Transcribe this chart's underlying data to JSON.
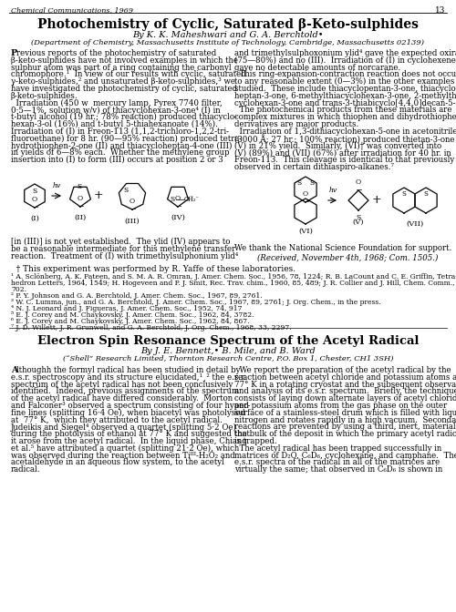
{
  "bg_color": "#ffffff",
  "header": "Chemical Communications, 1969",
  "page_num": "13",
  "art1_title": "Photochemistry of Cyclic, Saturated β-Keto-sulphides",
  "art1_by": "By K. K. Maheshwari and G. A. Berchtold•",
  "art1_aff": "(Department of Chemistry, Massachusetts Institute of Technology, Cambridge, Massachusetts 02139)",
  "art1_left": [
    "Previous reports of the photochemistry of saturated",
    "β-keto-sulphides have not involved examples in which the",
    "sulphur atom was part of a ring containing the carbonyl",
    "chromophore.¹  In view of our results with cyclic, saturated",
    "γ-keto-sulphides,² and unsaturated β-keto-sulphides,³ we",
    "have investigated the photochemistry of cyclic, saturated",
    "β-keto-sulphides.",
    "  Irradiation (450 w  mercury lamp, Pyrex 7740 filter,",
    "0·5—1%, solution w/v) of thiacyclohexan-3-one⁴ (I) in",
    "t-butyl alcohol (19 hr.; 78% reaction) produced thiacyclo-",
    "hexan-3-ol (16%) and t-butyl 5-thiahexanoate (14%).",
    "Irradiation of (I) in Freon-113 (1,1,2-trichloro-1,2,2-tri-",
    "fluoroethane) for 8 hr. (90—95% reaction) produced tetra-",
    "hydrothiophen-2-one (II) and thiacycloheptan-4-one (III)",
    "in yields of 6—8% each.  Whether the methylene group",
    "insertion into (I) to form (III) occurs at position 2 or 3"
  ],
  "art1_right": [
    "and trimethylsulphoxonium ylid⁴ gave the expected oxiran",
    "(75—80%) and no (III).  Irradiation of (I) in cyclohexene",
    "gave no detectable amounts of norcarane.",
    "  This ring-expansion-contraction reaction does not occur",
    "to any reasonable extent (0—3%) in the other examples",
    "studied.  These include thiacyclopentan-3-one, thiacyclo-",
    "heptan-3-one, 6-methylthiacyclohexan-3-one, 2-methylthia-",
    "cyclohexan-3-one and trans-3-thiabicyclo[4,4,0]decan-5-one.",
    "  The photochemical products from these materials are",
    "complex mixtures in which thiophen and dihydrothiophen",
    "derivatives are major products.",
    "  Irradiation of 1,3-dithiacyclohexan-5-one in acetonitrile",
    "(3000 Å; 27 hr.; 100% reaction) produced thietan-3-one",
    "(V) in 21% yield.  Similarly, (VI)† was converted into",
    "(V) (89%) and (VII) (67%) after irradiation for 40 hr. in",
    "Freon-113.  This cleavage is identical to that previously",
    "observed in certain dithiaspiro-alkanes.⁷"
  ],
  "art1_cont_left": [
    "[in (III)] is not yet established.  The ylid (IV) appears to",
    "be a reasonable intermediate for this methylene transfer",
    "reaction.  Treatment of (I) with trimethylsulphonium ylid⁴"
  ],
  "art1_thanks": "We thank the National Science Foundation for support.",
  "art1_received": "(Received, November 4th, 1968; Com. 1505.)",
  "art1_footnote_dagger": "  † This experiment was performed by R. Yaffe of these laboratories.",
  "art1_footnotes": [
    "¹ A. Sclönberg, A. K. Fateen, and S. M. A. R. Omran, J. Amer. Chem. Soc., 1956, 78, 1224; R. B. LaCount and C. E. Griffin, Tetra-",
    "hedron Letters, 1964, 1549; H. Hogeveen and P. J. Smit, Rec. Trav. chim., 1960, 85, 489; J. R. Collier and J. Hill, Chem. Comm., 1968,",
    "702.",
    "² P. Y. Johnson and G. A. Berchtold, J. Amer. Chem. Soc., 1967, 89, 2761.",
    "³ W. C. Lumma, jun., and G. A. Berchtold, J. Amer. Chem. Soc., 1967, 89, 2761; J. Org. Chem., in the press.",
    "⁴ N. J. Leonard and J. Figueras, J. Amer. Chem. Soc., 1952, 74, 917",
    "⁵ E. J. Corey and M. Chaykovsky, J. Amer. Chem. Soc., 1962, 84, 3782.",
    "⁶ E. J. Corey and M. Chaykovsky, J. Amer. Chem. Soc., 1962, 84, 867.",
    "⁷ J. D. Willett, J. R. Grunwell, and G. A. Berchtold, J. Org. Chem., 1968, 33, 2297."
  ],
  "art2_title": "Electron Spin Resonance Spectrum of the Acetyl Radical",
  "art2_by": "By J. E. Bennett,• B. Mile, and B. Ward",
  "art2_aff": "(“Shell” Research Limited, Thornton Research Centre, P.O. Box 1, Chester, CH1 3SH)",
  "art2_left": [
    "Although the formyl radical has been studied in detail by",
    "e.s.r. spectroscopy and its structure elucidated,¹¸² the e.s.r.",
    "spectrum of the acetyl radical has not been conclusively",
    "identified.  Indeed, previous assignments of the spectrum",
    "of the acetyl radical have differed considerably.  Morton",
    "and Falconer³ observed a spectrum consisting of four hyper-",
    "fine lines (splitting 16·4 Oe), when biacetyl was photolysed",
    "at  77° K,  which they attributed to the acetyl radical.",
    "Judeikis and Siegel⁴ observed a quartet (splitting 5·2 Oe)",
    "during the photolysis of ethanol at 77° K and suggested that",
    "it arose from the acetyl radical.  In the liquid phase, Chiang",
    "et al.⁵ have attributed a quartet (splitting 21·2 Oe), which",
    "was observed during the reaction between Tiᴵᴵᴵ-H₂O₂ and",
    "acetaldehyde in an aqueous flow system, to the acetyl",
    "radical."
  ],
  "art2_right": [
    "  We report the preparation of the acetyl radical by the",
    "reaction between acetyl chloride and potassium atoms at",
    "77° K in a rotating cryostat and the subsequent observation",
    "and analysis of its e.s.r. spectrum.  Briefly, the technique,⁶",
    "consists of laying down alternate layers of acetyl chloride",
    "and potassium atoms from the gas phase on the outer",
    "surface of a stainless-steel drum which is filled with liquid",
    "nitrogen and rotates rapidly in a high vacuum.  Secondary",
    "reactions are prevented by using a third, inert, material as",
    "the bulk of the deposit in which the primary acetyl radical",
    "is trapped.",
    "  The acetyl radical has been trapped successfully in",
    "matrices of D₂O, C₆D₆, cyclohexane, and camphane.  The",
    "e.s.r. spectra of the radical in all of the matrices are",
    "virtually the same; that observed in C₆D₆ is shown in"
  ]
}
